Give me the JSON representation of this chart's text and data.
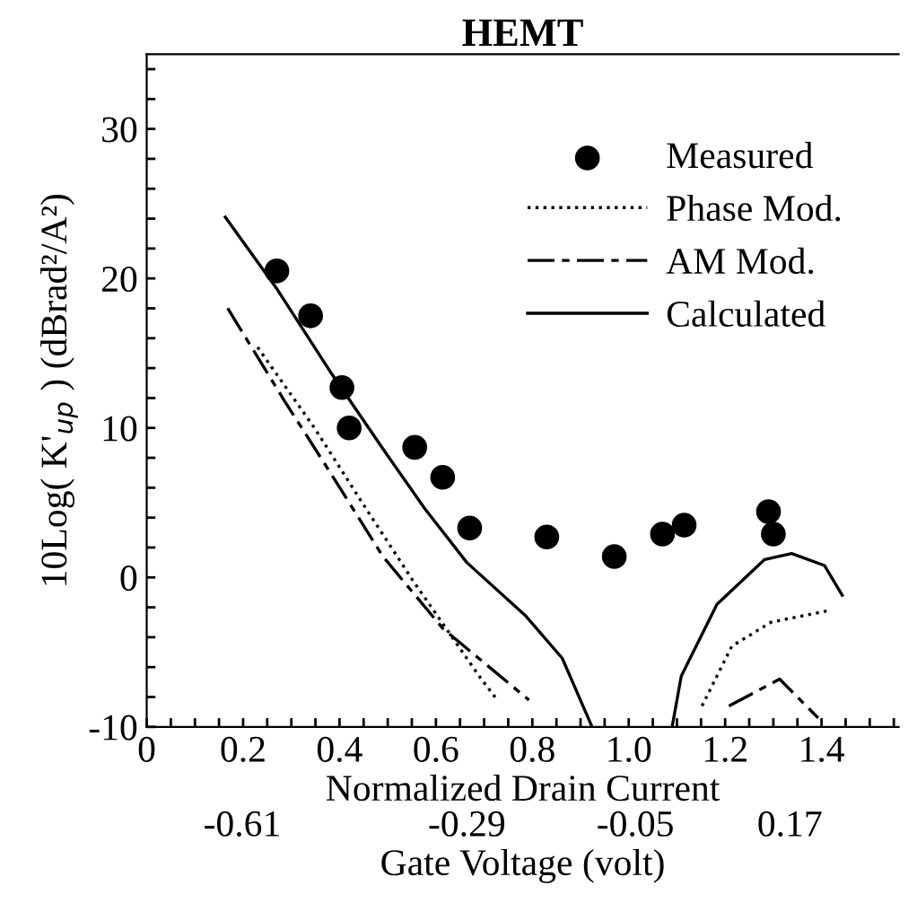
{
  "chart_data": {
    "type": "line",
    "title": "HEMT",
    "xlabel": "Normalized Drain Current",
    "ylabel": "10Log( K'$_{up}$ ) (dBrad²/A²)",
    "x2label": "Gate Voltage (volt)",
    "xlim": [
      0,
      1.56
    ],
    "ylim": [
      -10,
      35
    ],
    "xticks": [
      0,
      {
        "value": 0.05,
        "label": null
      },
      {
        "value": 0.1,
        "label": null
      },
      {
        "value": 0.15,
        "label": null
      },
      0.2,
      {
        "value": 0.25,
        "label": null
      },
      {
        "value": 0.3,
        "label": null
      },
      {
        "value": 0.35,
        "label": null
      },
      0.4,
      {
        "value": 0.45,
        "label": null
      },
      {
        "value": 0.5,
        "label": null
      },
      {
        "value": 0.55,
        "label": null
      },
      0.6,
      {
        "value": 0.65,
        "label": null
      },
      {
        "value": 0.7,
        "label": null
      },
      {
        "value": 0.75,
        "label": null
      },
      0.8,
      {
        "value": 0.85,
        "label": null
      },
      {
        "value": 0.9,
        "label": null
      },
      {
        "value": 0.95,
        "label": null
      },
      {
        "value": 1.0,
        "label": "1.0"
      },
      {
        "value": 1.05,
        "label": null
      },
      {
        "value": 1.1,
        "label": null
      },
      {
        "value": 1.15,
        "label": null
      },
      1.2,
      {
        "value": 1.25,
        "label": null
      },
      {
        "value": 1.3,
        "label": null
      },
      {
        "value": 1.35,
        "label": null
      },
      1.4,
      {
        "value": 1.45,
        "label": null
      },
      {
        "value": 1.5,
        "label": null
      },
      {
        "value": 1.55,
        "label": null
      }
    ],
    "yticks": [
      -10,
      {
        "value": -8,
        "label": null
      },
      {
        "value": -6,
        "label": null
      },
      {
        "value": -4,
        "label": null
      },
      {
        "value": -2,
        "label": null
      },
      0,
      {
        "value": 2,
        "label": null
      },
      {
        "value": 4,
        "label": null
      },
      {
        "value": 6,
        "label": null
      },
      {
        "value": 8,
        "label": null
      },
      10,
      {
        "value": 12,
        "label": null
      },
      {
        "value": 14,
        "label": null
      },
      {
        "value": 16,
        "label": null
      },
      {
        "value": 18,
        "label": null
      },
      20,
      {
        "value": 22,
        "label": null
      },
      {
        "value": 24,
        "label": null
      },
      {
        "value": 26,
        "label": null
      },
      {
        "value": 28,
        "label": null
      },
      30,
      {
        "value": 32,
        "label": null
      },
      {
        "value": 34,
        "label": null
      }
    ],
    "x2lim": [
      -0.746,
      0.325
    ],
    "x2ticks": [
      {
        "value": -0.61,
        "label": "-0.61"
      },
      {
        "value": -0.29,
        "label": "-0.29"
      },
      {
        "value": -0.05,
        "label": "-0.05"
      },
      0.17
    ],
    "legend": "top right",
    "grid": false,
    "series": [
      {
        "name": "Measured",
        "type": "scatter",
        "marker": "circle",
        "color": "#000000",
        "x": [
          0.27,
          0.34,
          0.405,
          0.42,
          0.556,
          0.614,
          0.67,
          0.83,
          0.97,
          1.07,
          1.115,
          1.29,
          1.3
        ],
        "values": [
          20.5,
          17.5,
          12.7,
          10.0,
          8.7,
          6.7,
          3.3,
          2.7,
          1.4,
          2.9,
          3.5,
          4.4,
          2.9
        ]
      },
      {
        "name": "Phase Mod.",
        "line_style": "dotted",
        "color": "#000000",
        "x": [
          0.23,
          0.348,
          0.447,
          0.552,
          0.694,
          0.725,
          0.94,
          1.152,
          1.214,
          1.295,
          1.418
        ],
        "values": [
          15.4,
          10.0,
          5.0,
          -0.2,
          -6.8,
          -8.1,
          null,
          -8.6,
          -4.6,
          -3.0,
          -2.2
        ]
      },
      {
        "name": "AM Mod.",
        "line_style": "dashdot",
        "color": "#000000",
        "x": [
          0.168,
          0.286,
          0.385,
          0.49,
          0.614,
          0.651,
          0.793,
          1.0,
          1.208,
          1.313,
          1.393
        ],
        "values": [
          18.0,
          11.8,
          6.8,
          1.4,
          -3.4,
          -4.4,
          -8.2,
          null,
          -8.6,
          -6.8,
          -9.4
        ]
      },
      {
        "name": "Calculated",
        "line_style": "solid",
        "color": "#000000",
        "x": [
          0.163,
          0.268,
          0.38,
          0.49,
          0.577,
          0.664,
          0.787,
          0.862,
          0.924,
          1.0,
          1.09,
          1.109,
          1.183,
          1.282,
          1.338,
          1.406,
          1.443
        ],
        "values": [
          24.1,
          19.4,
          13.8,
          8.6,
          4.6,
          1.0,
          -2.6,
          -5.4,
          -10,
          null,
          -10,
          -6.6,
          -1.8,
          1.2,
          1.6,
          0.8,
          -1.2
        ]
      }
    ]
  }
}
